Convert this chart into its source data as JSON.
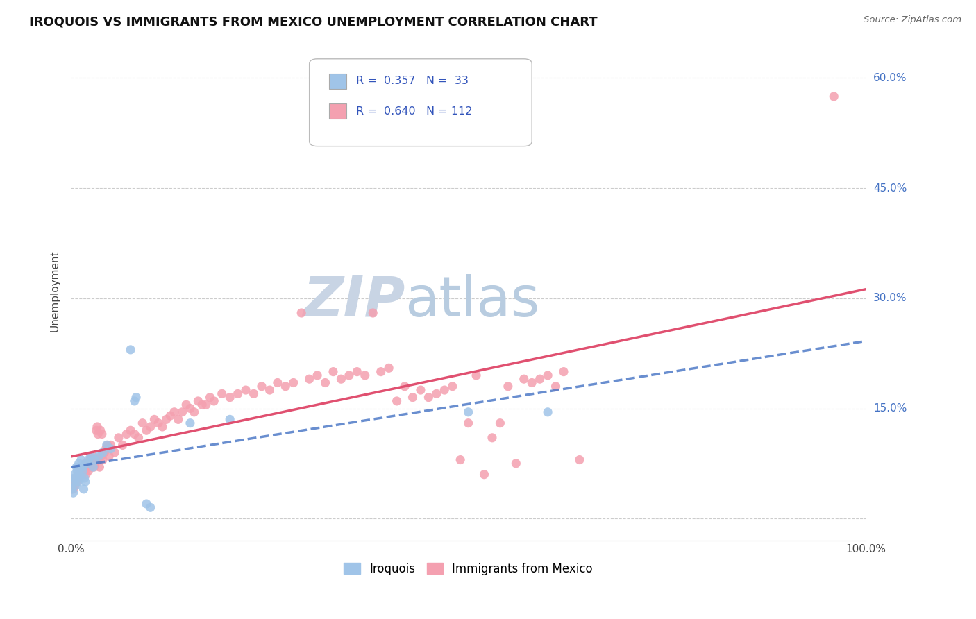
{
  "title": "IROQUOIS VS IMMIGRANTS FROM MEXICO UNEMPLOYMENT CORRELATION CHART",
  "source": "Source: ZipAtlas.com",
  "ylabel": "Unemployment",
  "xlim": [
    0,
    1.0
  ],
  "ylim": [
    -0.03,
    0.65
  ],
  "y_ticks_right": [
    0.0,
    0.15,
    0.3,
    0.45,
    0.6
  ],
  "y_tick_labels_right": [
    "",
    "15.0%",
    "30.0%",
    "45.0%",
    "60.0%"
  ],
  "iroquois_color": "#a0c4e8",
  "mexico_color": "#f4a0b0",
  "iroquois_line_color": "#4472c4",
  "mexico_line_color": "#e05070",
  "iroquois_line_style": "--",
  "mexico_line_style": "-",
  "watermark_zip_color": "#c8d4e4",
  "watermark_atlas_color": "#b8cce0",
  "background_color": "#ffffff",
  "grid_color": "#cccccc",
  "right_label_color": "#4472c4",
  "legend_box_color": "#ffffff",
  "legend_border_color": "#cccccc",
  "legend_text_color": "#3355bb",
  "bottom_legend_color_iroq": "#a0c4e8",
  "bottom_legend_color_mex": "#f4a0b0",
  "iroquois_scatter": [
    [
      0.001,
      0.04
    ],
    [
      0.002,
      0.05
    ],
    [
      0.003,
      0.035
    ],
    [
      0.004,
      0.055
    ],
    [
      0.005,
      0.06
    ],
    [
      0.006,
      0.045
    ],
    [
      0.007,
      0.07
    ],
    [
      0.008,
      0.065
    ],
    [
      0.009,
      0.05
    ],
    [
      0.01,
      0.075
    ],
    [
      0.011,
      0.06
    ],
    [
      0.012,
      0.055
    ],
    [
      0.013,
      0.08
    ],
    [
      0.014,
      0.07
    ],
    [
      0.015,
      0.065
    ],
    [
      0.016,
      0.04
    ],
    [
      0.017,
      0.055
    ],
    [
      0.018,
      0.05
    ],
    [
      0.02,
      0.075
    ],
    [
      0.022,
      0.08
    ],
    [
      0.025,
      0.085
    ],
    [
      0.028,
      0.07
    ],
    [
      0.03,
      0.08
    ],
    [
      0.035,
      0.085
    ],
    [
      0.04,
      0.09
    ],
    [
      0.045,
      0.1
    ],
    [
      0.05,
      0.095
    ],
    [
      0.075,
      0.23
    ],
    [
      0.08,
      0.16
    ],
    [
      0.082,
      0.165
    ],
    [
      0.095,
      0.02
    ],
    [
      0.1,
      0.015
    ],
    [
      0.15,
      0.13
    ],
    [
      0.2,
      0.135
    ],
    [
      0.5,
      0.145
    ],
    [
      0.6,
      0.145
    ]
  ],
  "mexico_scatter": [
    [
      0.001,
      0.04
    ],
    [
      0.002,
      0.045
    ],
    [
      0.003,
      0.04
    ],
    [
      0.004,
      0.05
    ],
    [
      0.005,
      0.045
    ],
    [
      0.006,
      0.055
    ],
    [
      0.007,
      0.05
    ],
    [
      0.008,
      0.055
    ],
    [
      0.009,
      0.06
    ],
    [
      0.01,
      0.055
    ],
    [
      0.011,
      0.065
    ],
    [
      0.012,
      0.06
    ],
    [
      0.013,
      0.065
    ],
    [
      0.014,
      0.06
    ],
    [
      0.015,
      0.07
    ],
    [
      0.016,
      0.065
    ],
    [
      0.017,
      0.07
    ],
    [
      0.018,
      0.075
    ],
    [
      0.019,
      0.06
    ],
    [
      0.02,
      0.07
    ],
    [
      0.021,
      0.075
    ],
    [
      0.022,
      0.065
    ],
    [
      0.023,
      0.075
    ],
    [
      0.024,
      0.08
    ],
    [
      0.025,
      0.07
    ],
    [
      0.026,
      0.075
    ],
    [
      0.027,
      0.08
    ],
    [
      0.028,
      0.085
    ],
    [
      0.029,
      0.07
    ],
    [
      0.03,
      0.075
    ],
    [
      0.031,
      0.08
    ],
    [
      0.032,
      0.12
    ],
    [
      0.033,
      0.125
    ],
    [
      0.034,
      0.115
    ],
    [
      0.035,
      0.08
    ],
    [
      0.036,
      0.07
    ],
    [
      0.037,
      0.12
    ],
    [
      0.038,
      0.085
    ],
    [
      0.039,
      0.115
    ],
    [
      0.04,
      0.08
    ],
    [
      0.042,
      0.09
    ],
    [
      0.044,
      0.095
    ],
    [
      0.046,
      0.1
    ],
    [
      0.048,
      0.085
    ],
    [
      0.05,
      0.1
    ],
    [
      0.055,
      0.09
    ],
    [
      0.06,
      0.11
    ],
    [
      0.065,
      0.1
    ],
    [
      0.07,
      0.115
    ],
    [
      0.075,
      0.12
    ],
    [
      0.08,
      0.115
    ],
    [
      0.085,
      0.11
    ],
    [
      0.09,
      0.13
    ],
    [
      0.095,
      0.12
    ],
    [
      0.1,
      0.125
    ],
    [
      0.105,
      0.135
    ],
    [
      0.11,
      0.13
    ],
    [
      0.115,
      0.125
    ],
    [
      0.12,
      0.135
    ],
    [
      0.125,
      0.14
    ],
    [
      0.13,
      0.145
    ],
    [
      0.135,
      0.135
    ],
    [
      0.14,
      0.145
    ],
    [
      0.145,
      0.155
    ],
    [
      0.15,
      0.15
    ],
    [
      0.155,
      0.145
    ],
    [
      0.16,
      0.16
    ],
    [
      0.165,
      0.155
    ],
    [
      0.17,
      0.155
    ],
    [
      0.175,
      0.165
    ],
    [
      0.18,
      0.16
    ],
    [
      0.19,
      0.17
    ],
    [
      0.2,
      0.165
    ],
    [
      0.21,
      0.17
    ],
    [
      0.22,
      0.175
    ],
    [
      0.23,
      0.17
    ],
    [
      0.24,
      0.18
    ],
    [
      0.25,
      0.175
    ],
    [
      0.26,
      0.185
    ],
    [
      0.27,
      0.18
    ],
    [
      0.28,
      0.185
    ],
    [
      0.29,
      0.28
    ],
    [
      0.3,
      0.19
    ],
    [
      0.31,
      0.195
    ],
    [
      0.32,
      0.185
    ],
    [
      0.33,
      0.2
    ],
    [
      0.34,
      0.19
    ],
    [
      0.35,
      0.195
    ],
    [
      0.36,
      0.2
    ],
    [
      0.37,
      0.195
    ],
    [
      0.38,
      0.28
    ],
    [
      0.39,
      0.2
    ],
    [
      0.4,
      0.205
    ],
    [
      0.41,
      0.16
    ],
    [
      0.42,
      0.18
    ],
    [
      0.43,
      0.165
    ],
    [
      0.44,
      0.175
    ],
    [
      0.45,
      0.165
    ],
    [
      0.46,
      0.17
    ],
    [
      0.47,
      0.175
    ],
    [
      0.48,
      0.18
    ],
    [
      0.49,
      0.08
    ],
    [
      0.5,
      0.13
    ],
    [
      0.51,
      0.195
    ],
    [
      0.52,
      0.06
    ],
    [
      0.53,
      0.11
    ],
    [
      0.54,
      0.13
    ],
    [
      0.55,
      0.18
    ],
    [
      0.56,
      0.075
    ],
    [
      0.57,
      0.19
    ],
    [
      0.58,
      0.185
    ],
    [
      0.59,
      0.19
    ],
    [
      0.6,
      0.195
    ],
    [
      0.61,
      0.18
    ],
    [
      0.62,
      0.2
    ],
    [
      0.64,
      0.08
    ],
    [
      0.96,
      0.575
    ]
  ]
}
